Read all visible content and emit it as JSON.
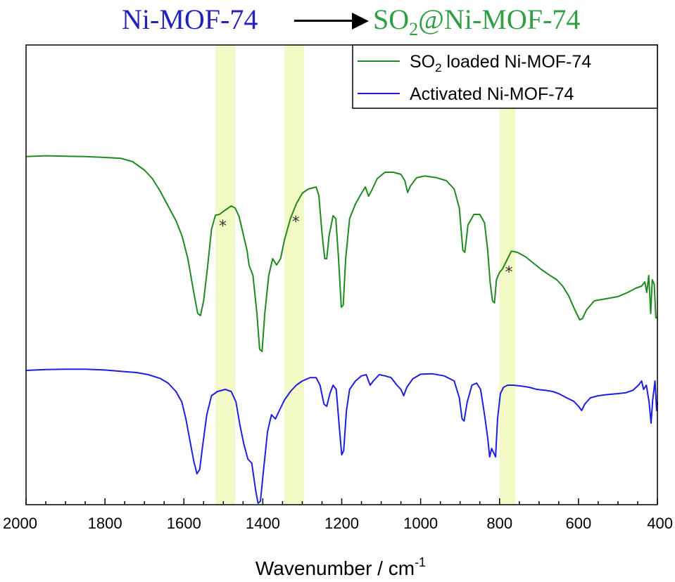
{
  "title": {
    "from": "Ni-MOF-74",
    "to_prefix": "SO",
    "to_sub": "2",
    "to_suffix": "@Ni-MOF-74",
    "from_color": "#2222bb",
    "to_color": "#2f9e45"
  },
  "chart_data": {
    "type": "line",
    "title": "Ni-MOF-74 → SO2@Ni-MOF-74",
    "xlabel": "Wavenumber / cm-1",
    "xlabel_parts": {
      "main": "Wavenumber / cm",
      "sup": "-1"
    },
    "ylabel": "",
    "xlim": [
      2000,
      400
    ],
    "x_reversed": true,
    "xticks": [
      2000,
      1800,
      1600,
      1400,
      1200,
      1000,
      800,
      600,
      400
    ],
    "yticks_shown": false,
    "grid": false,
    "legend_position": "top-right",
    "highlight_bands": [
      [
        1520,
        1470
      ],
      [
        1345,
        1295
      ],
      [
        800,
        760
      ]
    ],
    "highlight_color": "#f2f9c4",
    "series": [
      {
        "name": "SO2 loaded Ni-MOF-74",
        "legend_main": "SO",
        "legend_sub": "2",
        "legend_rest": " loaded Ni-MOF-74",
        "color": "#1f8a1f",
        "points": [
          [
            2000,
            0.842
          ],
          [
            1950,
            0.844
          ],
          [
            1900,
            0.843
          ],
          [
            1850,
            0.842
          ],
          [
            1800,
            0.84
          ],
          [
            1760,
            0.838
          ],
          [
            1730,
            0.83
          ],
          [
            1700,
            0.81
          ],
          [
            1680,
            0.79
          ],
          [
            1660,
            0.76
          ],
          [
            1640,
            0.725
          ],
          [
            1620,
            0.69
          ],
          [
            1605,
            0.655
          ],
          [
            1590,
            0.6
          ],
          [
            1575,
            0.52
          ],
          [
            1565,
            0.47
          ],
          [
            1558,
            0.465
          ],
          [
            1550,
            0.5
          ],
          [
            1540,
            0.58
          ],
          [
            1530,
            0.67
          ],
          [
            1520,
            0.703
          ],
          [
            1510,
            0.705
          ],
          [
            1500,
            0.712
          ],
          [
            1480,
            0.725
          ],
          [
            1470,
            0.72
          ],
          [
            1460,
            0.7
          ],
          [
            1450,
            0.66
          ],
          [
            1440,
            0.62
          ],
          [
            1435,
            0.585
          ],
          [
            1425,
            0.56
          ],
          [
            1415,
            0.47
          ],
          [
            1408,
            0.385
          ],
          [
            1402,
            0.38
          ],
          [
            1395,
            0.47
          ],
          [
            1385,
            0.56
          ],
          [
            1375,
            0.6
          ],
          [
            1365,
            0.585
          ],
          [
            1355,
            0.6
          ],
          [
            1345,
            0.645
          ],
          [
            1330,
            0.695
          ],
          [
            1315,
            0.73
          ],
          [
            1300,
            0.755
          ],
          [
            1285,
            0.765
          ],
          [
            1265,
            0.77
          ],
          [
            1258,
            0.75
          ],
          [
            1250,
            0.66
          ],
          [
            1243,
            0.6
          ],
          [
            1238,
            0.6
          ],
          [
            1232,
            0.655
          ],
          [
            1222,
            0.702
          ],
          [
            1215,
            0.695
          ],
          [
            1208,
            0.6
          ],
          [
            1201,
            0.485
          ],
          [
            1196,
            0.49
          ],
          [
            1190,
            0.6
          ],
          [
            1180,
            0.695
          ],
          [
            1165,
            0.73
          ],
          [
            1150,
            0.755
          ],
          [
            1140,
            0.77
          ],
          [
            1132,
            0.748
          ],
          [
            1124,
            0.762
          ],
          [
            1110,
            0.79
          ],
          [
            1090,
            0.805
          ],
          [
            1070,
            0.805
          ],
          [
            1050,
            0.8
          ],
          [
            1040,
            0.785
          ],
          [
            1033,
            0.757
          ],
          [
            1026,
            0.772
          ],
          [
            1010,
            0.792
          ],
          [
            990,
            0.796
          ],
          [
            960,
            0.792
          ],
          [
            935,
            0.785
          ],
          [
            915,
            0.765
          ],
          [
            902,
            0.72
          ],
          [
            893,
            0.62
          ],
          [
            888,
            0.615
          ],
          [
            880,
            0.68
          ],
          [
            865,
            0.705
          ],
          [
            850,
            0.705
          ],
          [
            838,
            0.685
          ],
          [
            830,
            0.62
          ],
          [
            824,
            0.545
          ],
          [
            818,
            0.5
          ],
          [
            813,
            0.495
          ],
          [
            808,
            0.55
          ],
          [
            800,
            0.568
          ],
          [
            793,
            0.575
          ],
          [
            785,
            0.59
          ],
          [
            770,
            0.618
          ],
          [
            755,
            0.615
          ],
          [
            735,
            0.605
          ],
          [
            715,
            0.59
          ],
          [
            695,
            0.575
          ],
          [
            675,
            0.562
          ],
          [
            655,
            0.55
          ],
          [
            640,
            0.535
          ],
          [
            625,
            0.512
          ],
          [
            610,
            0.48
          ],
          [
            597,
            0.455
          ],
          [
            590,
            0.458
          ],
          [
            580,
            0.478
          ],
          [
            560,
            0.5
          ],
          [
            530,
            0.505
          ],
          [
            500,
            0.51
          ],
          [
            475,
            0.52
          ],
          [
            455,
            0.53
          ],
          [
            440,
            0.535
          ],
          [
            432,
            0.545
          ],
          [
            427,
            0.52
          ],
          [
            422,
            0.56
          ],
          [
            417,
            0.47
          ],
          [
            413,
            0.55
          ],
          [
            408,
            0.54
          ],
          [
            404,
            0.46
          ],
          [
            400,
            0.46
          ]
        ]
      },
      {
        "name": "Activated Ni-MOF-74",
        "legend_main": "Activated Ni-MOF-74",
        "color": "#1e1ee0",
        "points": [
          [
            2000,
            0.335
          ],
          [
            1950,
            0.337
          ],
          [
            1900,
            0.338
          ],
          [
            1850,
            0.338
          ],
          [
            1800,
            0.336
          ],
          [
            1750,
            0.332
          ],
          [
            1720,
            0.33
          ],
          [
            1690,
            0.325
          ],
          [
            1660,
            0.316
          ],
          [
            1640,
            0.305
          ],
          [
            1620,
            0.285
          ],
          [
            1605,
            0.26
          ],
          [
            1595,
            0.22
          ],
          [
            1585,
            0.17
          ],
          [
            1575,
            0.12
          ],
          [
            1567,
            0.09
          ],
          [
            1560,
            0.1
          ],
          [
            1552,
            0.16
          ],
          [
            1542,
            0.23
          ],
          [
            1530,
            0.275
          ],
          [
            1515,
            0.285
          ],
          [
            1495,
            0.29
          ],
          [
            1480,
            0.285
          ],
          [
            1468,
            0.26
          ],
          [
            1458,
            0.205
          ],
          [
            1448,
            0.16
          ],
          [
            1438,
            0.125
          ],
          [
            1428,
            0.115
          ],
          [
            1418,
            0.05
          ],
          [
            1412,
            0.02
          ],
          [
            1406,
            0.025
          ],
          [
            1398,
            0.1
          ],
          [
            1388,
            0.19
          ],
          [
            1378,
            0.23
          ],
          [
            1368,
            0.22
          ],
          [
            1358,
            0.24
          ],
          [
            1345,
            0.265
          ],
          [
            1330,
            0.285
          ],
          [
            1315,
            0.3
          ],
          [
            1300,
            0.31
          ],
          [
            1280,
            0.318
          ],
          [
            1265,
            0.318
          ],
          [
            1255,
            0.3
          ],
          [
            1245,
            0.255
          ],
          [
            1238,
            0.25
          ],
          [
            1230,
            0.28
          ],
          [
            1222,
            0.3
          ],
          [
            1214,
            0.29
          ],
          [
            1206,
            0.2
          ],
          [
            1200,
            0.135
          ],
          [
            1195,
            0.145
          ],
          [
            1188,
            0.24
          ],
          [
            1180,
            0.29
          ],
          [
            1165,
            0.31
          ],
          [
            1150,
            0.322
          ],
          [
            1138,
            0.325
          ],
          [
            1128,
            0.3
          ],
          [
            1120,
            0.31
          ],
          [
            1105,
            0.325
          ],
          [
            1090,
            0.322
          ],
          [
            1075,
            0.318
          ],
          [
            1060,
            0.3
          ],
          [
            1050,
            0.29
          ],
          [
            1043,
            0.275
          ],
          [
            1035,
            0.295
          ],
          [
            1020,
            0.315
          ],
          [
            1000,
            0.326
          ],
          [
            970,
            0.327
          ],
          [
            940,
            0.322
          ],
          [
            915,
            0.31
          ],
          [
            902,
            0.27
          ],
          [
            895,
            0.22
          ],
          [
            890,
            0.215
          ],
          [
            882,
            0.26
          ],
          [
            870,
            0.3
          ],
          [
            858,
            0.305
          ],
          [
            848,
            0.29
          ],
          [
            838,
            0.23
          ],
          [
            830,
            0.175
          ],
          [
            825,
            0.13
          ],
          [
            820,
            0.15
          ],
          [
            815,
            0.14
          ],
          [
            810,
            0.13
          ],
          [
            805,
            0.22
          ],
          [
            798,
            0.28
          ],
          [
            790,
            0.295
          ],
          [
            780,
            0.3
          ],
          [
            765,
            0.3
          ],
          [
            745,
            0.298
          ],
          [
            725,
            0.295
          ],
          [
            705,
            0.29
          ],
          [
            685,
            0.288
          ],
          [
            665,
            0.285
          ],
          [
            650,
            0.28
          ],
          [
            630,
            0.27
          ],
          [
            612,
            0.262
          ],
          [
            600,
            0.25
          ],
          [
            592,
            0.24
          ],
          [
            584,
            0.255
          ],
          [
            570,
            0.27
          ],
          [
            550,
            0.275
          ],
          [
            525,
            0.278
          ],
          [
            500,
            0.28
          ],
          [
            480,
            0.282
          ],
          [
            462,
            0.288
          ],
          [
            448,
            0.3
          ],
          [
            440,
            0.31
          ],
          [
            435,
            0.29
          ],
          [
            428,
            0.3
          ],
          [
            421,
            0.26
          ],
          [
            416,
            0.21
          ],
          [
            412,
            0.265
          ],
          [
            406,
            0.31
          ],
          [
            402,
            0.24
          ],
          [
            400,
            0.26
          ]
        ]
      }
    ],
    "peak_markers": [
      {
        "label": "*",
        "series": "SO2 loaded Ni-MOF-74",
        "x": 1505
      },
      {
        "label": "*",
        "series": "SO2 loaded Ni-MOF-74",
        "x": 1320
      },
      {
        "label": "*",
        "series": "SO2 loaded Ni-MOF-74",
        "x": 780
      }
    ]
  }
}
